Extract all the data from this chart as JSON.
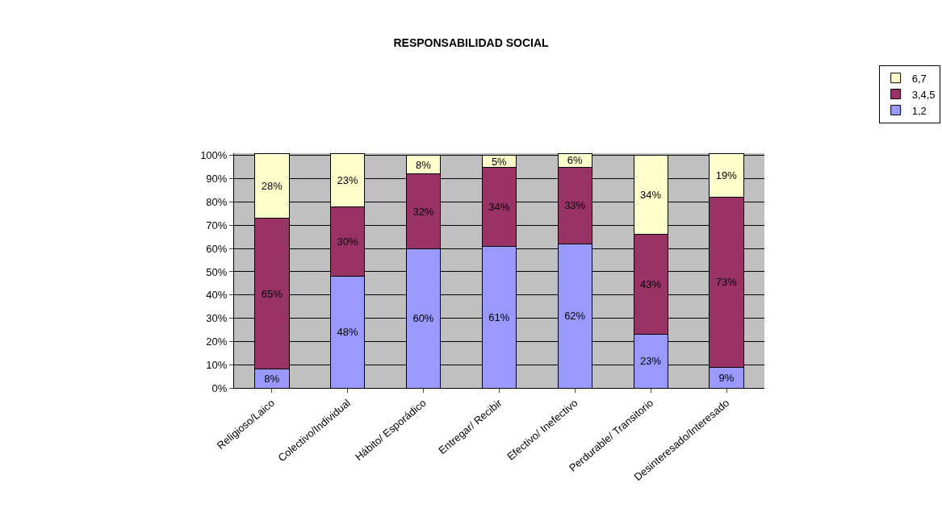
{
  "chart_data": {
    "type": "bar",
    "title": "RESPONSABILIDAD SOCIAL",
    "stacked": true,
    "categories": [
      "Religioso/Laico",
      "Colectivo/Individual",
      "Hábito/ Esporádico",
      "Entregar/ Recibir",
      "Efectivo/ Inefectivo",
      "Perdurable/ Transitorio",
      "Desinteresado/Interesado"
    ],
    "series": [
      {
        "name": "1,2",
        "color": "#9999ff",
        "values": [
          8,
          48,
          60,
          61,
          62,
          23,
          9
        ],
        "value_labels": [
          "8%",
          "48%",
          "60%",
          "61%",
          "62%",
          "23%",
          "9%"
        ]
      },
      {
        "name": "3,4,5",
        "color": "#993366",
        "values": [
          65,
          30,
          32,
          34,
          33,
          43,
          73
        ],
        "value_labels": [
          "65%",
          "30%",
          "32%",
          "34%",
          "33%",
          "43%",
          "73%"
        ]
      },
      {
        "name": "6,7",
        "color": "#ffffcc",
        "values": [
          28,
          23,
          8,
          5,
          6,
          34,
          19
        ],
        "value_labels": [
          "28%",
          "23%",
          "8%",
          "5%",
          "6%",
          "34%",
          "19%"
        ]
      }
    ],
    "ylim": [
      0,
      101
    ],
    "yticks": [
      {
        "value": 0,
        "label": "0%"
      },
      {
        "value": 10,
        "label": "10%"
      },
      {
        "value": 20,
        "label": "20%"
      },
      {
        "value": 30,
        "label": "30%"
      },
      {
        "value": 40,
        "label": "40%"
      },
      {
        "value": 50,
        "label": "50%"
      },
      {
        "value": 60,
        "label": "60%"
      },
      {
        "value": 70,
        "label": "70%"
      },
      {
        "value": 80,
        "label": "80%"
      },
      {
        "value": 90,
        "label": "90%"
      },
      {
        "value": 100,
        "label": "100%"
      }
    ],
    "grid": "y",
    "legend": "top right"
  }
}
